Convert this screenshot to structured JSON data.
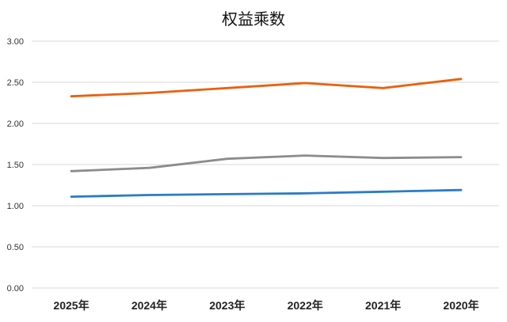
{
  "chart_data": {
    "type": "line",
    "title": "权益乘数",
    "xlabel": "",
    "ylabel": "",
    "categories": [
      "2025年",
      "2024年",
      "2023年",
      "2022年",
      "2021年",
      "2020年"
    ],
    "ylim": [
      0,
      3.0
    ],
    "yticks": [
      "0.00",
      "0.50",
      "1.00",
      "1.50",
      "2.00",
      "2.50",
      "3.00"
    ],
    "grid": true,
    "legend": "none",
    "series": [
      {
        "color": "#E8620F",
        "values": [
          2.33,
          2.37,
          2.43,
          2.49,
          2.43,
          2.54
        ]
      },
      {
        "color": "#8C8C8C",
        "values": [
          1.42,
          1.46,
          1.57,
          1.61,
          1.58,
          1.59
        ]
      },
      {
        "color": "#2A7CC7",
        "values": [
          1.11,
          1.13,
          1.14,
          1.15,
          1.17,
          1.19
        ]
      }
    ]
  }
}
